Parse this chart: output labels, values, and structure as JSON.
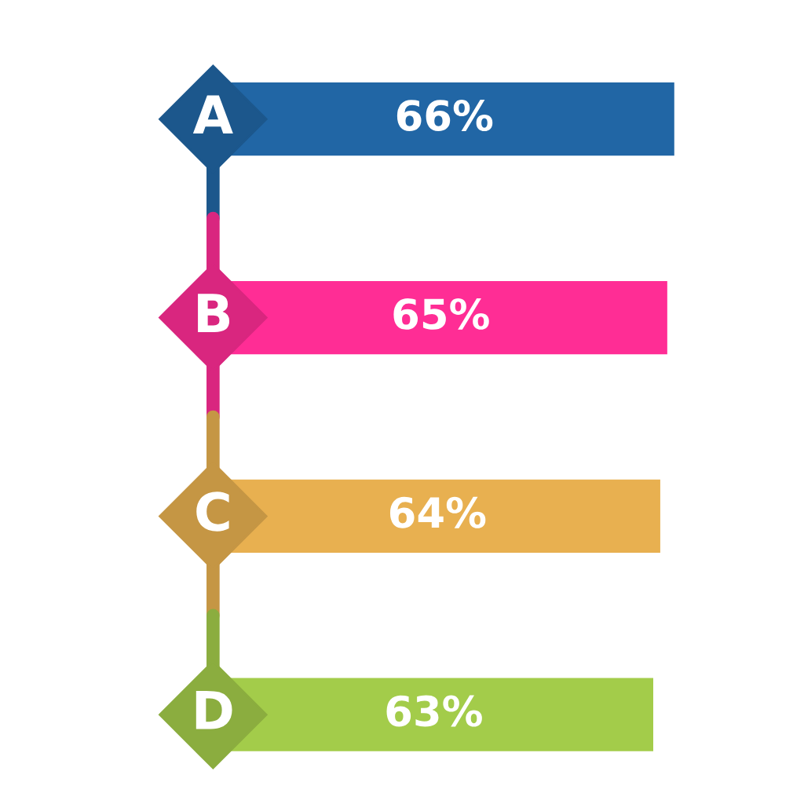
{
  "chart_data": {
    "type": "bar",
    "orientation": "horizontal",
    "categories": [
      "A",
      "B",
      "C",
      "D"
    ],
    "values": [
      66,
      65,
      64,
      63
    ],
    "value_labels": [
      "66%",
      "65%",
      "64%",
      "63%"
    ],
    "colors": [
      "#2166a5",
      "#ff2d95",
      "#e8b050",
      "#a3cc4a"
    ]
  }
}
